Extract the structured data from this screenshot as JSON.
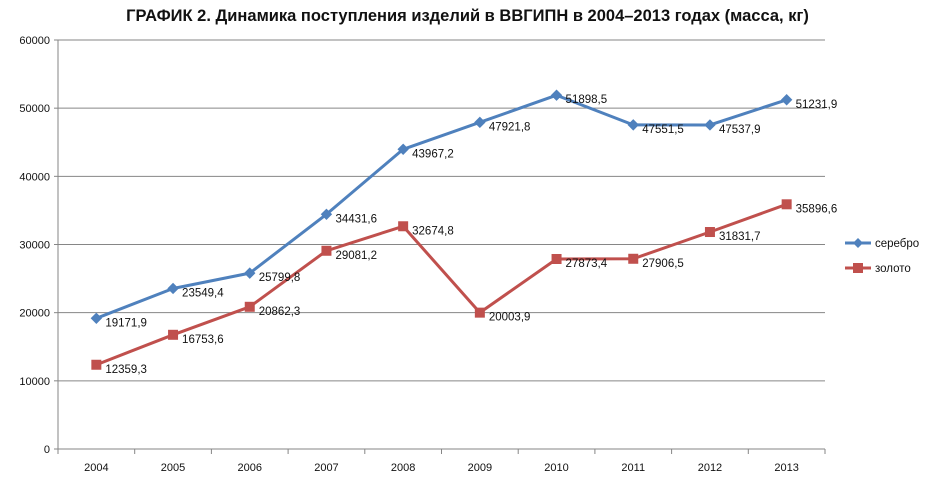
{
  "chart_data": {
    "type": "line",
    "title": "ГРАФИК 2. Динамика поступления изделий в ВВГИПН в 2004–2013 годах (масса, кг)",
    "xlabel": "",
    "ylabel": "",
    "categories": [
      "2004",
      "2005",
      "2006",
      "2007",
      "2008",
      "2009",
      "2010",
      "2011",
      "2012",
      "2013"
    ],
    "ylim": [
      0,
      60000
    ],
    "yticks": [
      0,
      10000,
      20000,
      30000,
      40000,
      50000,
      60000
    ],
    "grid": true,
    "legend_position": "right",
    "series": [
      {
        "name": "серебро",
        "color": "#4F81BD",
        "marker": "diamond",
        "values": [
          19171.9,
          23549.4,
          25799.8,
          34431.6,
          43967.2,
          47921.8,
          51898.5,
          47551.5,
          47537.9,
          51231.9
        ],
        "labels": [
          "19171,9",
          "23549,4",
          "25799,8",
          "34431,6",
          "43967,2",
          "47921,8",
          "51898,5",
          "47551,5",
          "47537,9",
          "51231,9"
        ]
      },
      {
        "name": "золото",
        "color": "#C0504D",
        "marker": "square",
        "values": [
          12359.3,
          16753.6,
          20862.3,
          29081.2,
          32674.8,
          20003.9,
          27873.4,
          27906.5,
          31831.7,
          35896.6
        ],
        "labels": [
          "12359,3",
          "16753,6",
          "20862,3",
          "29081,2",
          "32674,8",
          "20003,9",
          "27873,4",
          "27906,5",
          "31831,7",
          "35896,6"
        ]
      }
    ]
  }
}
